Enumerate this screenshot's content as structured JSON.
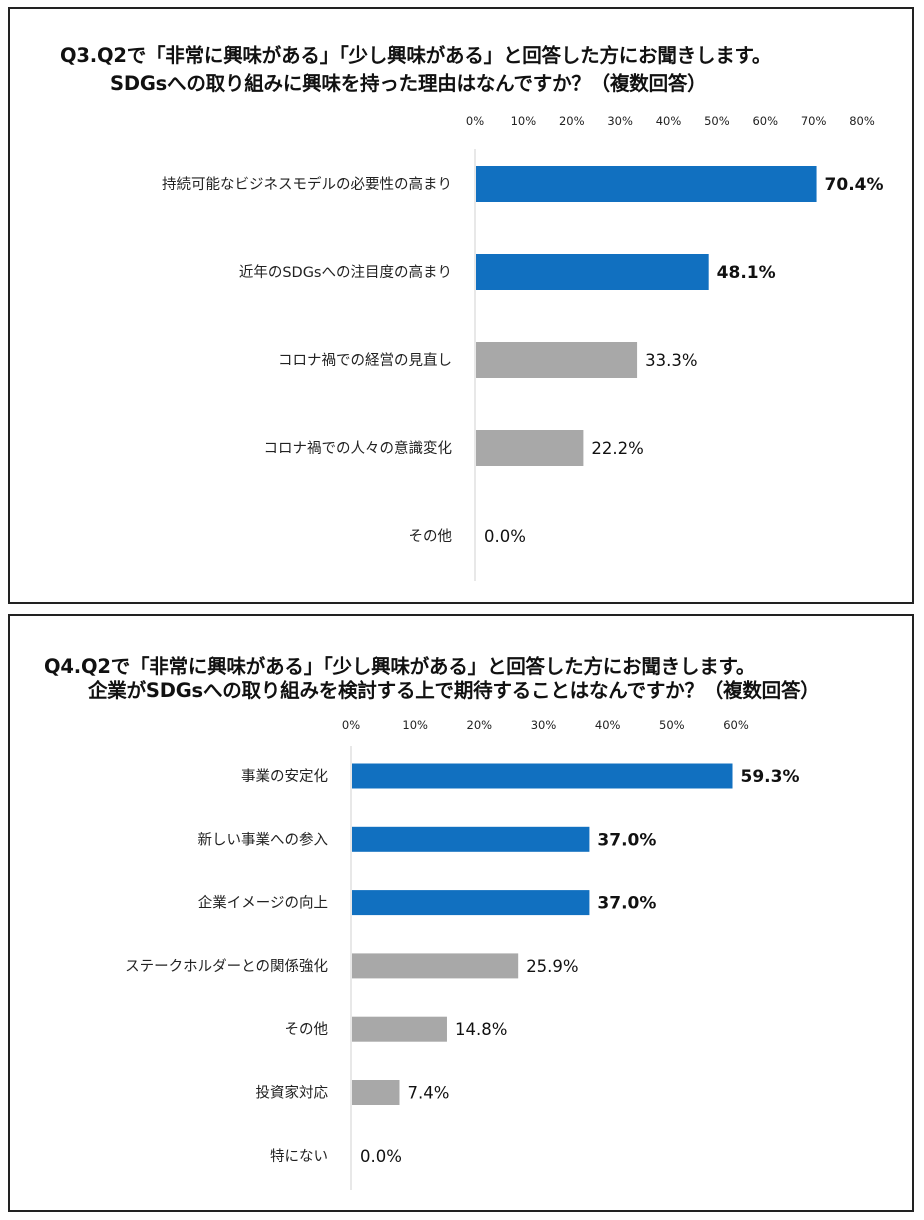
{
  "colors": {
    "highlight": "#1170c0",
    "normal": "#a8a8a8",
    "axis": "#d0d0d0"
  },
  "chart_data": [
    {
      "type": "bar",
      "orientation": "horizontal",
      "title_lines": [
        "Q3.Q2で「非常に興味がある」「少し興味がある」と回答した方にお聞きします。",
        "SDGsへの取り組みに興味を持った理由はなんですか？（複数回答）"
      ],
      "categories": [
        "持続可能なビジネスモデルの必要性の高まり",
        "近年のSDGsへの注目度の高まり",
        "コロナ禍での経営の見直し",
        "コロナ禍での人々の意識変化",
        "その他"
      ],
      "values": [
        70.4,
        48.1,
        33.3,
        22.2,
        0.0
      ],
      "value_labels": [
        "70.4%",
        "48.1%",
        "33.3%",
        "22.2%",
        "0.0%"
      ],
      "highlight": [
        true,
        true,
        false,
        false,
        false
      ],
      "xlim": [
        0,
        80
      ],
      "x_ticks": [
        "0%",
        "10%",
        "20%",
        "30%",
        "40%",
        "50%",
        "60%",
        "70%",
        "80%"
      ],
      "tick_position": "top",
      "grid": false
    },
    {
      "type": "bar",
      "orientation": "horizontal",
      "title_lines": [
        "Q4.Q2で「非常に興味がある」「少し興味がある」と回答した方にお聞きします。",
        "企業がSDGsへの取り組みを検討する上で期待することはなんですか？（複数回答）"
      ],
      "categories": [
        "事業の安定化",
        "新しい事業への参入",
        "企業イメージの向上",
        "ステークホルダーとの関係強化",
        "その他",
        "投資家対応",
        "特にない"
      ],
      "values": [
        59.3,
        37.0,
        37.0,
        25.9,
        14.8,
        7.4,
        0.0
      ],
      "value_labels": [
        "59.3%",
        "37.0%",
        "37.0%",
        "25.9%",
        "14.8%",
        "7.4%",
        "0.0%"
      ],
      "highlight": [
        true,
        true,
        true,
        false,
        false,
        false,
        false
      ],
      "xlim": [
        0,
        60
      ],
      "x_ticks": [
        "0%",
        "10%",
        "20%",
        "30%",
        "40%",
        "50%",
        "60%"
      ],
      "tick_position": "top",
      "grid": false
    }
  ]
}
